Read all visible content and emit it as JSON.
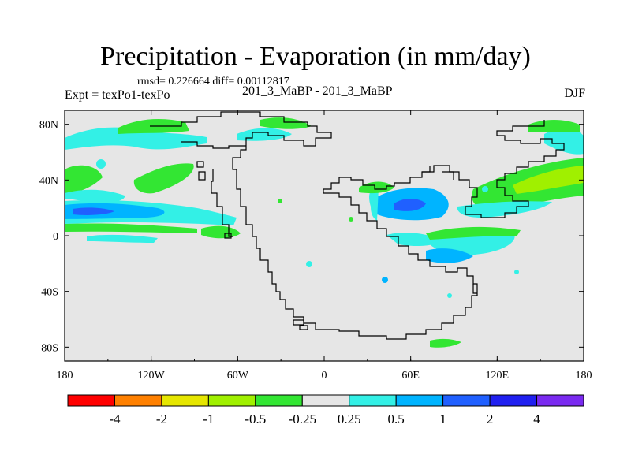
{
  "title": "Precipitation - Evaporation (in mm/day)",
  "stats": "rmsd= 0.226664 diff= 0.00112817",
  "experiment": "Expt = texPo1-texPo",
  "case": "201_3_MaBP - 201_3_MaBP",
  "season": "DJF",
  "map": {
    "projection": "cylindrical equidistant",
    "background_color": "#e6e6e6",
    "lon_ticks": [
      "180",
      "120W",
      "60W",
      "0",
      "60E",
      "120E",
      "180"
    ],
    "lat_ticks": [
      "80N",
      "40N",
      "0",
      "40S",
      "80S"
    ]
  },
  "colorbar": {
    "colors": [
      "#ff0000",
      "#ff8000",
      "#e6e600",
      "#a0f000",
      "#33e633",
      "#e6e6e6",
      "#33f0e6",
      "#00b4ff",
      "#2060ff",
      "#2020f0",
      "#7a2af0"
    ],
    "labels": [
      "-4",
      "-2",
      "-1",
      "-0.5",
      "-0.25",
      "0.25",
      "0.5",
      "1",
      "2",
      "4"
    ]
  }
}
